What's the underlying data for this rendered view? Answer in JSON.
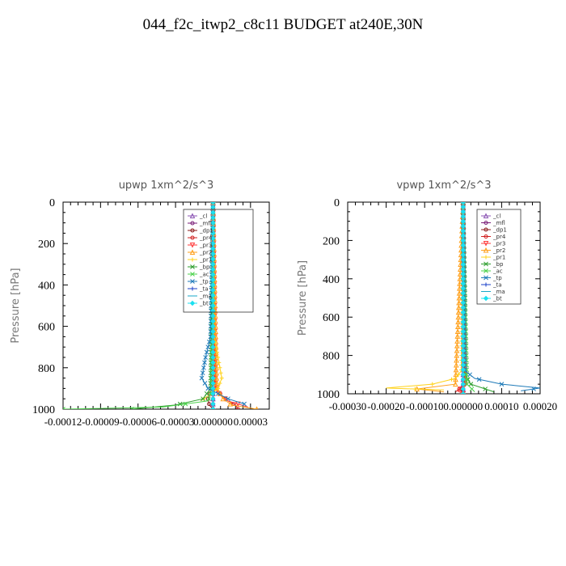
{
  "title": "044_f2c_itwp2_c8c11  BUDGET at240E,30N",
  "chart_data": [
    {
      "type": "line",
      "title": "upwp   1xm^2/s^3",
      "ylabel": "Pressure [hPa]",
      "xlabel": "",
      "ylim": [
        1000,
        0
      ],
      "xlim": [
        -0.00012,
        4.5e-05
      ],
      "y_ticks": [
        0,
        200,
        400,
        600,
        800,
        1000
      ],
      "y_tick_labels": [
        "0",
        "200",
        "400",
        "600",
        "800",
        "1000"
      ],
      "x_ticks": [
        -0.00012,
        -9e-05,
        -6e-05,
        -3e-05,
        0.0,
        3e-05
      ],
      "x_tick_labels": [
        "-0.00012",
        "-0.00009",
        "-0.00006",
        "-0.00003",
        "0.000000",
        "0.00003"
      ],
      "legend_position": "top-right",
      "series": [
        {
          "name": "_cl",
          "color": "#8c56b4",
          "p": [
            0,
            1000
          ],
          "v": [
            0,
            0
          ]
        },
        {
          "name": "_mfl",
          "color": "#7a1e78",
          "p": [
            0,
            1000
          ],
          "v": [
            0,
            0
          ]
        },
        {
          "name": "_dp1",
          "color": "#8b1a1a",
          "p": [
            0,
            700,
            900,
            950,
            980,
            1000
          ],
          "v": [
            0,
            0.0,
            -1e-06,
            -4e-06,
            -3e-06,
            0.0
          ]
        },
        {
          "name": "_pr4",
          "color": "#d11f1f",
          "p": [
            0,
            850,
            900,
            940,
            960,
            980,
            1000
          ],
          "v": [
            0,
            1e-06,
            2e-06,
            8e-06,
            1.2e-05,
            1.8e-05,
            2e-05
          ]
        },
        {
          "name": "_pr3",
          "color": "#ff3b3b",
          "p": [
            0,
            880,
            930,
            960,
            990
          ],
          "v": [
            0,
            2e-06,
            5e-06,
            1.2e-05,
            2.8e-05
          ]
        },
        {
          "name": "_pr2",
          "color": "#ff9f1a",
          "p": [
            0,
            900,
            950,
            980,
            1000
          ],
          "v": [
            0,
            3e-06,
            8e-06,
            1.5e-05,
            3.5e-05
          ]
        },
        {
          "name": "_pr1",
          "color": "#ffd21a",
          "p": [
            0,
            650,
            750,
            850,
            900,
            940,
            960
          ],
          "v": [
            0,
            1e-06,
            4e-06,
            7e-06,
            4e-06,
            -5e-06,
            -1e-05
          ]
        },
        {
          "name": "_bp",
          "color": "#2e9e2e",
          "p": [
            0,
            900,
            950,
            980,
            1000
          ],
          "v": [
            0,
            -2e-06,
            -8e-06,
            -3e-05,
            -6.5e-05
          ]
        },
        {
          "name": "_ac",
          "color": "#4cd24c",
          "p": [
            0,
            900,
            960,
            990,
            1000
          ],
          "v": [
            0,
            -1e-06,
            -4e-06,
            -4e-05,
            -0.00012
          ]
        },
        {
          "name": "_tp",
          "color": "#1e7ab8",
          "p": [
            0,
            650,
            750,
            850,
            900,
            950,
            975
          ],
          "v": [
            0,
            -2e-06,
            -6e-06,
            -9e-06,
            -4e-06,
            1.2e-05,
            2.5e-05
          ]
        },
        {
          "name": "_ta",
          "color": "#1a3fc8",
          "p": [
            0,
            1000
          ],
          "v": [
            0,
            0
          ]
        },
        {
          "name": "_ma",
          "color": "#1aa7c8",
          "p": [
            0,
            1000
          ],
          "v": [
            0,
            0
          ]
        },
        {
          "name": "_bt",
          "color": "#1ae0f0",
          "p": [
            0,
            1000
          ],
          "v": [
            0,
            0
          ]
        }
      ]
    },
    {
      "type": "line",
      "title": "vpwp   1xm^2/s^3",
      "ylabel": "Pressure [hPa]",
      "xlabel": "",
      "ylim": [
        1000,
        0
      ],
      "xlim": [
        -0.0003,
        0.0002
      ],
      "y_ticks": [
        0,
        200,
        400,
        600,
        800,
        1000
      ],
      "y_tick_labels": [
        "0",
        "200",
        "400",
        "600",
        "800",
        "1000"
      ],
      "x_ticks": [
        -0.0003,
        -0.0002,
        -0.0001,
        0.0,
        0.0001,
        0.0002
      ],
      "x_tick_labels": [
        "-0.00030",
        "-0.00020",
        "-0.00010",
        "0.000000",
        "0.00010",
        "0.00020"
      ],
      "legend_position": "top-right",
      "series": [
        {
          "name": "_cl",
          "color": "#8c56b4",
          "p": [
            0,
            1000
          ],
          "v": [
            0,
            0
          ]
        },
        {
          "name": "_mfl",
          "color": "#7a1e78",
          "p": [
            0,
            1000
          ],
          "v": [
            0,
            0
          ]
        },
        {
          "name": "_dp1",
          "color": "#8b1a1a",
          "p": [
            0,
            950,
            980,
            1000
          ],
          "v": [
            0,
            3e-06,
            -5e-06,
            0.0
          ]
        },
        {
          "name": "_pr4",
          "color": "#d11f1f",
          "p": [
            0,
            950,
            975,
            990
          ],
          "v": [
            0,
            5e-06,
            -1e-05,
            -2e-05
          ]
        },
        {
          "name": "_pr3",
          "color": "#ff3b3b",
          "p": [
            0,
            960,
            985,
            1000
          ],
          "v": [
            0,
            5e-06,
            -1.5e-05,
            0.0
          ]
        },
        {
          "name": "_pr2",
          "color": "#ff9f1a",
          "p": [
            0,
            950,
            975,
            990
          ],
          "v": [
            0,
            -2e-05,
            -0.00012,
            -5e-05
          ]
        },
        {
          "name": "_pr1",
          "color": "#ffd21a",
          "p": [
            0,
            880,
            920,
            950,
            970,
            980
          ],
          "v": [
            0,
            -5e-06,
            -2e-05,
            -8e-05,
            -0.0002,
            -5e-05
          ]
        },
        {
          "name": "_bp",
          "color": "#2e9e2e",
          "p": [
            0,
            900,
            950,
            990
          ],
          "v": [
            0,
            5e-06,
            2e-05,
            8e-05
          ]
        },
        {
          "name": "_ac",
          "color": "#4cd24c",
          "p": [
            0,
            950,
            990
          ],
          "v": [
            0,
            1e-05,
            3e-05
          ]
        },
        {
          "name": "_tp",
          "color": "#1e7ab8",
          "p": [
            0,
            880,
            920,
            950,
            970,
            985
          ],
          "v": [
            0,
            5e-06,
            3e-05,
            0.0001,
            0.0002,
            0.00015
          ]
        },
        {
          "name": "_ta",
          "color": "#1a3fc8",
          "p": [
            0,
            1000
          ],
          "v": [
            0,
            0
          ]
        },
        {
          "name": "_ma",
          "color": "#1aa7c8",
          "p": [
            0,
            1000
          ],
          "v": [
            0,
            0
          ]
        },
        {
          "name": "_bt",
          "color": "#1ae0f0",
          "p": [
            0,
            1000
          ],
          "v": [
            0,
            0
          ]
        }
      ]
    }
  ]
}
